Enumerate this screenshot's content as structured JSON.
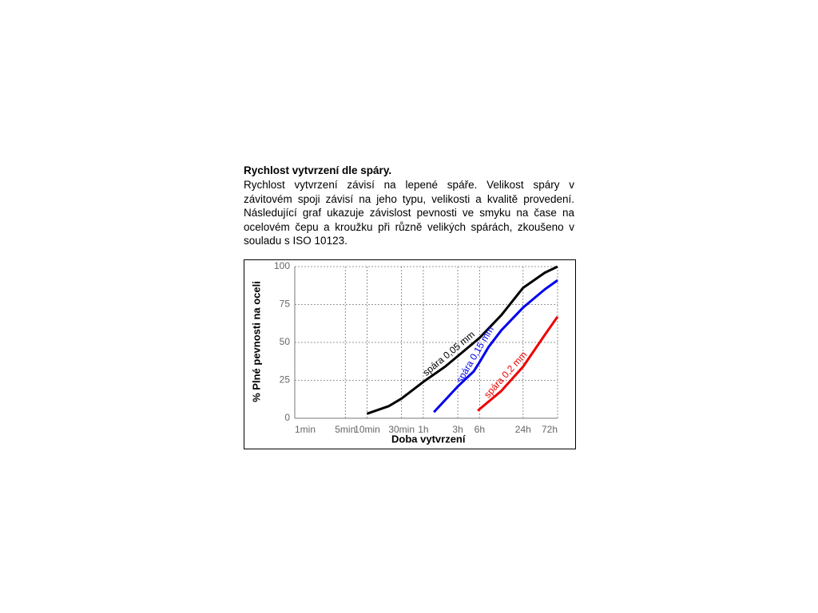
{
  "heading": "Rychlost vytvrzení dle spáry.",
  "paragraph": "Rychlost vytvrzení závisí na lepené spáře. Velikost spáry v závitovém spoji závisí na jeho typu, velikosti a kvalitě provedení. Následující graf ukazuje závislost pevnosti ve smyku na čase na ocelovém čepu a kroužku při různě velikých spárách, zkoušeno v souladu s ISO 10123.",
  "chart_data": {
    "type": "line",
    "x_label": "Doba vytvrzení",
    "y_label": "% Plné pevnosti na oceli",
    "xscale": "log",
    "xlim": [
      1,
      4320
    ],
    "xticks": [
      {
        "value": 1,
        "label": "1min"
      },
      {
        "value": 5,
        "label": "5min"
      },
      {
        "value": 10,
        "label": "10min"
      },
      {
        "value": 30,
        "label": "30min"
      },
      {
        "value": 60,
        "label": "1h"
      },
      {
        "value": 180,
        "label": "3h"
      },
      {
        "value": 360,
        "label": "6h"
      },
      {
        "value": 1440,
        "label": "24h"
      },
      {
        "value": 4320,
        "label": "72h"
      }
    ],
    "ylim": [
      0,
      100
    ],
    "yticks": [
      0,
      25,
      50,
      75,
      100
    ],
    "grid": true,
    "series": [
      {
        "name": "spára 0,05 mm",
        "color": "#000000",
        "x": [
          10,
          20,
          30,
          60,
          120,
          180,
          360,
          720,
          1440,
          2880,
          4320
        ],
        "values": [
          3,
          8,
          13,
          24,
          34,
          41,
          53,
          68,
          86,
          96,
          100
        ]
      },
      {
        "name": "spára 0,15 mm",
        "color": "#0000ee",
        "x": [
          84,
          180,
          300,
          360,
          480,
          720,
          1440,
          2880,
          4320
        ],
        "values": [
          4,
          21,
          31,
          37,
          47,
          58,
          73,
          85,
          91
        ]
      },
      {
        "name": "spára 0,2 mm",
        "color": "#ee0000",
        "x": [
          340,
          720,
          1440,
          2880,
          4320
        ],
        "values": [
          5,
          18,
          34,
          55,
          67
        ]
      }
    ]
  }
}
